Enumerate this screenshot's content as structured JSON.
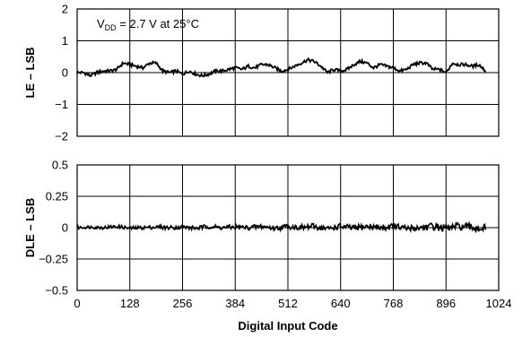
{
  "chart_data": [
    {
      "type": "line",
      "annotation": {
        "main": "V",
        "sub": "DD",
        "rest": " = 2.7 V at 25°C"
      },
      "xlabel": "",
      "ylabel": "LE – LSB",
      "xlim": [
        0,
        1024
      ],
      "ylim": [
        -2,
        2
      ],
      "x_ticks": [
        0,
        128,
        256,
        384,
        512,
        640,
        768,
        896,
        1024
      ],
      "y_ticks": [
        2,
        1,
        0,
        -1,
        -2
      ],
      "y_tick_labels": [
        "2",
        "1",
        "0",
        "−1",
        "−2"
      ],
      "grid": true,
      "line_color": "#000000",
      "series": [
        {
          "x": [
            0,
            16,
            32,
            48,
            64,
            80,
            96,
            112,
            128,
            144,
            160,
            176,
            192,
            208,
            224,
            240,
            256,
            272,
            288,
            304,
            320,
            336,
            352,
            368,
            384,
            400,
            416,
            432,
            448,
            464,
            480,
            496,
            512,
            528,
            544,
            560,
            576,
            592,
            608,
            624,
            640,
            656,
            672,
            688,
            704,
            720,
            736,
            752,
            768,
            784,
            800,
            816,
            832,
            848,
            864,
            880,
            896,
            912,
            928,
            944,
            960,
            976,
            992
          ],
          "values": [
            0.0,
            0.0,
            -0.1,
            0.0,
            0.05,
            0.05,
            0.1,
            0.3,
            0.25,
            0.2,
            0.15,
            0.3,
            0.3,
            0.05,
            0.0,
            0.05,
            -0.05,
            0.05,
            -0.05,
            -0.1,
            -0.05,
            0.05,
            0.05,
            0.1,
            0.15,
            0.1,
            0.2,
            0.15,
            0.25,
            0.25,
            0.15,
            0.05,
            0.1,
            0.2,
            0.3,
            0.4,
            0.35,
            0.2,
            0.0,
            0.1,
            0.05,
            0.1,
            0.25,
            0.35,
            0.3,
            0.15,
            0.25,
            0.2,
            0.15,
            0.05,
            0.1,
            0.25,
            0.3,
            0.3,
            0.1,
            0.1,
            0.0,
            0.3,
            0.25,
            0.25,
            0.2,
            0.25,
            0.05
          ]
        }
      ]
    },
    {
      "type": "line",
      "xlabel": "Digital Input Code",
      "ylabel": "DLE – LSB",
      "xlim": [
        0,
        1024
      ],
      "ylim": [
        -0.5,
        0.5
      ],
      "x_ticks": [
        0,
        128,
        256,
        384,
        512,
        640,
        768,
        896,
        1024
      ],
      "x_tick_labels": [
        "0",
        "128",
        "256",
        "384",
        "512",
        "640",
        "768",
        "896",
        "1024"
      ],
      "y_ticks": [
        0.5,
        0.25,
        0,
        -0.25,
        -0.5
      ],
      "y_tick_labels": [
        "0.5",
        "0.25",
        "0",
        "−0.25",
        "−0.5"
      ],
      "grid": true,
      "line_color": "#000000",
      "series": [
        {
          "x": [
            0,
            32,
            64,
            96,
            128,
            160,
            192,
            224,
            256,
            288,
            320,
            352,
            384,
            416,
            448,
            480,
            512,
            544,
            576,
            608,
            640,
            672,
            704,
            736,
            768,
            800,
            832,
            864,
            896,
            928,
            960,
            992
          ],
          "values": [
            0.0,
            0.005,
            0.0,
            0.01,
            -0.005,
            0.0,
            0.005,
            0.0,
            0.005,
            -0.005,
            0.01,
            0.0,
            0.005,
            0.0,
            0.01,
            -0.005,
            0.01,
            0.0,
            0.01,
            -0.01,
            0.01,
            -0.005,
            0.01,
            0.0,
            0.01,
            -0.01,
            0.0,
            0.01,
            -0.005,
            0.01,
            0.0,
            -0.005
          ]
        }
      ]
    }
  ]
}
